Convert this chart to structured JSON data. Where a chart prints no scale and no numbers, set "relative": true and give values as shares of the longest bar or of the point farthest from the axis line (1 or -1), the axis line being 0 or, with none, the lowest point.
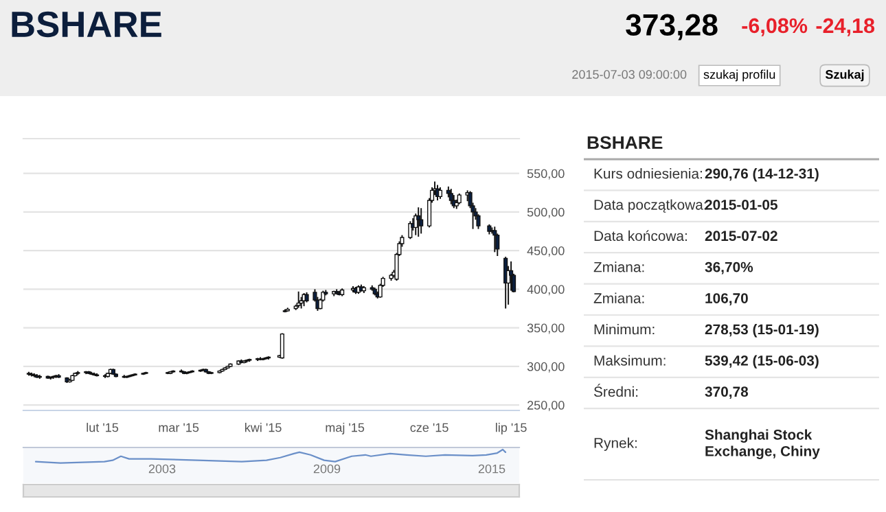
{
  "chart_data": [
    {
      "type": "candlestick",
      "title": "BSHARE",
      "annotations": [
        "373,28",
        "-6,08%",
        "-24,18",
        "2015-07-03 09:00:00",
        "szukaj profilu",
        "Szukaj"
      ],
      "x": [
        "2015-01-05",
        "2015-01-06",
        "2015-01-07",
        "2015-01-08",
        "2015-01-09",
        "2015-01-12",
        "2015-01-13",
        "2015-01-14",
        "2015-01-15",
        "2015-01-16",
        "2015-01-19",
        "2015-01-20",
        "2015-01-21",
        "2015-01-22",
        "2015-01-23",
        "2015-01-26",
        "2015-01-27",
        "2015-01-28",
        "2015-01-29",
        "2015-01-30",
        "2015-02-02",
        "2015-02-03",
        "2015-02-04",
        "2015-02-05",
        "2015-02-06",
        "2015-02-09",
        "2015-02-10",
        "2015-02-11",
        "2015-02-12",
        "2015-02-13",
        "2015-02-16",
        "2015-02-17",
        "2015-02-25",
        "2015-02-26",
        "2015-02-27",
        "2015-03-02",
        "2015-03-03",
        "2015-03-04",
        "2015-03-05",
        "2015-03-06",
        "2015-03-09",
        "2015-03-10",
        "2015-03-11",
        "2015-03-12",
        "2015-03-13",
        "2015-03-16",
        "2015-03-17",
        "2015-03-18",
        "2015-03-19",
        "2015-03-20",
        "2015-03-23",
        "2015-03-24",
        "2015-03-25",
        "2015-03-26",
        "2015-03-27",
        "2015-03-30",
        "2015-03-31",
        "2015-04-01",
        "2015-04-02",
        "2015-04-03",
        "2015-04-07",
        "2015-04-08",
        "2015-04-09",
        "2015-04-10",
        "2015-04-13",
        "2015-04-14",
        "2015-04-15",
        "2015-04-16",
        "2015-04-17",
        "2015-04-20",
        "2015-04-21",
        "2015-04-22",
        "2015-04-23",
        "2015-04-24",
        "2015-04-27",
        "2015-04-28",
        "2015-04-29",
        "2015-04-30",
        "2015-05-04",
        "2015-05-05",
        "2015-05-06",
        "2015-05-07",
        "2015-05-08",
        "2015-05-11",
        "2015-05-12",
        "2015-05-13",
        "2015-05-14",
        "2015-05-15",
        "2015-05-18",
        "2015-05-19",
        "2015-05-20",
        "2015-05-21",
        "2015-05-22",
        "2015-05-25",
        "2015-05-26",
        "2015-05-27",
        "2015-05-28",
        "2015-05-29",
        "2015-06-01",
        "2015-06-02",
        "2015-06-03",
        "2015-06-04",
        "2015-06-05",
        "2015-06-08",
        "2015-06-09",
        "2015-06-10",
        "2015-06-11",
        "2015-06-12",
        "2015-06-15",
        "2015-06-16",
        "2015-06-17",
        "2015-06-18",
        "2015-06-19",
        "2015-06-23",
        "2015-06-24",
        "2015-06-25",
        "2015-06-26",
        "2015-06-29",
        "2015-06-30",
        "2015-07-01",
        "2015-07-02"
      ],
      "ohlc": [
        [
          291,
          293,
          288,
          290
        ],
        [
          290,
          292,
          287,
          289
        ],
        [
          289,
          291,
          286,
          288
        ],
        [
          288,
          290,
          285,
          286
        ],
        [
          286,
          289,
          284,
          287
        ],
        [
          287,
          288,
          284,
          285
        ],
        [
          285,
          287,
          283,
          286
        ],
        [
          286,
          288,
          284,
          287
        ],
        [
          287,
          289,
          285,
          288
        ],
        [
          288,
          290,
          285,
          286
        ],
        [
          285,
          286,
          278.53,
          280
        ],
        [
          280,
          284,
          279,
          282
        ],
        [
          282,
          289,
          281,
          288
        ],
        [
          288,
          292,
          287,
          291
        ],
        [
          291,
          294,
          289,
          292
        ],
        [
          292,
          294,
          290,
          293
        ],
        [
          293,
          294,
          290,
          291
        ],
        [
          291,
          293,
          289,
          290
        ],
        [
          290,
          292,
          288,
          289
        ],
        [
          289,
          291,
          287,
          288
        ],
        [
          288,
          290,
          285,
          287
        ],
        [
          287,
          292,
          286,
          291
        ],
        [
          291,
          297,
          290,
          296
        ],
        [
          296,
          297,
          289,
          290
        ],
        [
          290,
          291,
          286,
          287
        ],
        [
          287,
          289,
          285,
          286
        ],
        [
          286,
          288,
          285,
          287
        ],
        [
          287,
          289,
          286,
          288
        ],
        [
          288,
          290,
          287,
          289
        ],
        [
          289,
          291,
          288,
          290
        ],
        [
          290,
          292,
          289,
          291
        ],
        [
          291,
          293,
          290,
          292
        ],
        [
          292,
          293,
          290,
          291
        ],
        [
          291,
          294,
          290,
          293
        ],
        [
          293,
          295,
          292,
          294
        ],
        [
          294,
          296,
          292,
          293
        ],
        [
          293,
          294,
          290,
          291
        ],
        [
          291,
          293,
          290,
          292
        ],
        [
          292,
          294,
          291,
          293
        ],
        [
          293,
          295,
          292,
          294
        ],
        [
          294,
          296,
          293,
          295
        ],
        [
          295,
          297,
          294,
          296
        ],
        [
          296,
          297,
          292,
          293
        ],
        [
          293,
          294,
          290,
          291
        ],
        [
          291,
          293,
          290,
          292
        ],
        [
          292,
          295,
          291,
          294
        ],
        [
          294,
          297,
          293,
          296
        ],
        [
          296,
          299,
          295,
          298
        ],
        [
          298,
          301,
          297,
          300
        ],
        [
          300,
          304,
          299,
          303
        ],
        [
          303,
          308,
          302,
          307
        ],
        [
          307,
          309,
          304,
          305
        ],
        [
          305,
          308,
          304,
          307
        ],
        [
          307,
          309,
          305,
          308
        ],
        [
          308,
          310,
          306,
          309
        ],
        [
          309,
          311,
          307,
          310
        ],
        [
          310,
          312,
          308,
          309
        ],
        [
          309,
          311,
          308,
          310
        ],
        [
          310,
          312,
          309,
          311
        ],
        [
          311,
          313,
          309,
          312
        ],
        [
          312,
          315,
          311,
          314
        ],
        [
          311,
          343,
          310,
          342
        ],
        [
          372,
          374,
          370,
          371
        ],
        [
          372,
          376,
          371,
          374
        ],
        [
          375,
          380,
          373,
          378
        ],
        [
          379,
          397,
          376,
          382
        ],
        [
          382,
          390,
          375,
          385
        ],
        [
          385,
          395,
          378,
          393
        ],
        [
          393,
          396,
          383,
          385
        ],
        [
          396,
          400,
          384,
          386
        ],
        [
          386,
          390,
          372,
          375
        ],
        [
          375,
          388,
          374,
          386
        ],
        [
          386,
          398,
          384,
          396
        ],
        [
          396,
          399,
          392,
          394
        ],
        [
          394,
          398,
          391,
          397
        ],
        [
          397,
          400,
          393,
          395
        ],
        [
          395,
          398,
          392,
          393
        ],
        [
          393,
          401,
          391,
          399
        ],
        [
          399,
          404,
          396,
          401
        ],
        [
          401,
          403,
          394,
          396
        ],
        [
          396,
          405,
          394,
          403
        ],
        [
          403,
          406,
          397,
          398
        ],
        [
          398,
          404,
          395,
          402
        ],
        [
          402,
          405,
          398,
          400
        ],
        [
          400,
          402,
          392,
          394
        ],
        [
          394,
          397,
          388,
          390
        ],
        [
          390,
          407,
          389,
          405
        ],
        [
          405,
          416,
          403,
          414
        ],
        [
          414,
          420,
          411,
          418
        ],
        [
          418,
          425,
          415,
          422
        ],
        [
          413,
          447,
          411,
          445
        ],
        [
          445,
          462,
          443,
          459
        ],
        [
          459,
          470,
          455,
          467
        ],
        [
          467,
          488,
          465,
          485
        ],
        [
          485,
          492,
          476,
          480
        ],
        [
          480,
          498,
          470,
          495
        ],
        [
          495,
          506,
          468,
          490
        ],
        [
          490,
          505,
          472,
          482
        ],
        [
          482,
          518,
          480,
          515
        ],
        [
          515,
          532,
          512,
          528
        ],
        [
          528,
          539.42,
          522,
          530
        ],
        [
          530,
          535,
          515,
          520
        ],
        [
          520,
          532,
          517,
          528
        ],
        [
          528,
          533,
          519,
          524
        ],
        [
          524,
          530,
          510,
          515
        ],
        [
          515,
          522,
          505,
          508
        ],
        [
          508,
          516,
          504,
          512
        ],
        [
          512,
          524,
          510,
          522
        ],
        [
          522,
          528,
          514,
          525
        ],
        [
          525,
          527,
          505,
          508
        ],
        [
          508,
          512,
          478,
          500
        ],
        [
          500,
          505,
          490,
          495
        ],
        [
          495,
          497,
          478,
          482
        ],
        [
          482,
          484,
          471,
          475
        ],
        [
          475,
          480,
          472,
          476
        ],
        [
          476,
          481,
          448,
          470
        ],
        [
          470,
          472,
          443,
          452
        ],
        [
          440,
          442,
          375,
          408
        ],
        [
          408,
          430,
          380,
          424
        ],
        [
          424,
          436,
          398,
          418
        ],
        [
          418,
          420,
          396,
          397
        ]
      ],
      "xlim": [
        "2015-01-03",
        "2015-07-04"
      ],
      "xticks": [
        {
          "value": "2015-02-01",
          "label": "lut '15"
        },
        {
          "value": "2015-03-01",
          "label": "mar '15"
        },
        {
          "value": "2015-04-01",
          "label": "kwi '15"
        },
        {
          "value": "2015-05-01",
          "label": "maj '15"
        },
        {
          "value": "2015-06-01",
          "label": "cze '15"
        },
        {
          "value": "2015-07-01",
          "label": "lip '15"
        }
      ],
      "ylim": [
        243,
        595
      ],
      "yticks": [
        {
          "value": 250,
          "label": "250,00"
        },
        {
          "value": 300,
          "label": "300,00"
        },
        {
          "value": 350,
          "label": "350,00"
        },
        {
          "value": 400,
          "label": "400,00"
        },
        {
          "value": 450,
          "label": "450,00"
        },
        {
          "value": 500,
          "label": "500,00"
        },
        {
          "value": 550,
          "label": "550,00"
        }
      ],
      "grid": "y"
    },
    {
      "type": "line",
      "relative": true,
      "color": "#6a8fc8",
      "x": [
        1998.4,
        1999.3,
        2000.9,
        2001.2,
        2001.5,
        2001.8,
        2002.6,
        2004.3,
        2005.9,
        2006.8,
        2007.3,
        2007.8,
        2008.0,
        2008.4,
        2008.9,
        2009.3,
        2009.9,
        2010.4,
        2010.6,
        2011.3,
        2011.9,
        2012.6,
        2013.3,
        2014.3,
        2014.8,
        2015.2,
        2015.4,
        2015.5
      ],
      "values": [
        0.1,
        0,
        0.1,
        0.2,
        0.5,
        0.3,
        0.3,
        0.2,
        0.1,
        0.2,
        0.4,
        0.7,
        0.8,
        0.6,
        0.2,
        0.1,
        0.5,
        0.6,
        0.5,
        0.7,
        0.6,
        0.5,
        0.6,
        0.54,
        0.6,
        0.74,
        1,
        0.8
      ],
      "xlim": [
        1997.95,
        2016.0
      ],
      "xticks": [
        2003,
        2009,
        2015
      ]
    },
    {
      "type": "other",
      "title": "BSHARE",
      "annotations": [
        "Kurs odniesienia:",
        "290,76 (14-12-31)",
        "Data początkowa:",
        "2015-01-05",
        "Data końcowa:",
        "2015-07-02",
        "Zmiana:",
        "36,70%",
        "Zmiana:",
        "106,70",
        "Minimum:",
        "278,53 (15-01-19)",
        "Maksimum:",
        "539,42 (15-06-03)",
        "Średni:",
        "370,78",
        "Rynek:",
        "Shanghai Stock Exchange, Chiny"
      ]
    }
  ]
}
